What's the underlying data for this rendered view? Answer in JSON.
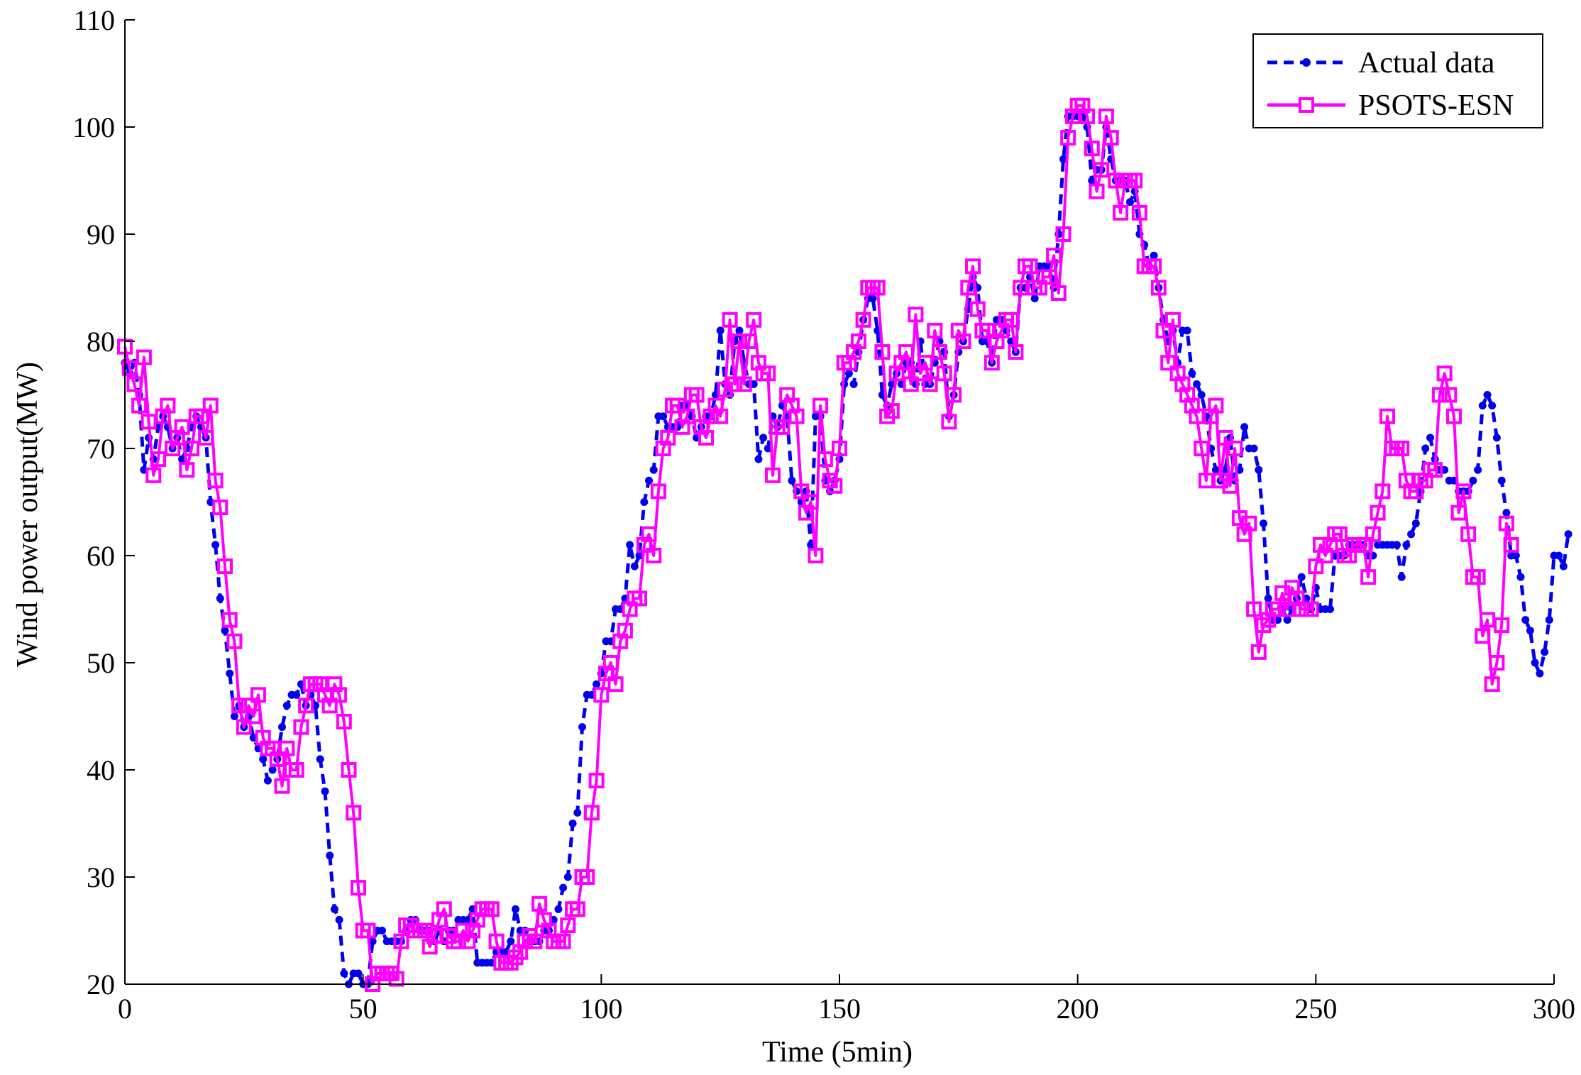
{
  "chart_data": {
    "type": "line",
    "title": "",
    "xlabel": "Time (5min)",
    "ylabel": "Wind power output(MW)",
    "xlim": [
      0,
      300
    ],
    "ylim": [
      20,
      110
    ],
    "xticks": [
      0,
      50,
      100,
      150,
      200,
      250,
      300
    ],
    "yticks": [
      20,
      30,
      40,
      50,
      60,
      70,
      80,
      90,
      100,
      110
    ],
    "grid": false,
    "legend_position": "top-right",
    "series": [
      {
        "name": "Actual data",
        "color": "#0000ee",
        "line_style": "dashed",
        "marker": "dot",
        "x_start": 0,
        "x_step": 1,
        "values": [
          78,
          77,
          78,
          75,
          68,
          71,
          69,
          72,
          73,
          72,
          70,
          71,
          69,
          70,
          72,
          73,
          72,
          71,
          65,
          61,
          56,
          53,
          49,
          45,
          46,
          44,
          45,
          43,
          42,
          41,
          39,
          40,
          41,
          44,
          46,
          47,
          47,
          48,
          46,
          47,
          46,
          41,
          38,
          32,
          27,
          26,
          21,
          20,
          21,
          21,
          20,
          20,
          24,
          25,
          25,
          24,
          24,
          24,
          24,
          25,
          26,
          26,
          25,
          25,
          25,
          24,
          25,
          24,
          25,
          25,
          26,
          26,
          26,
          27,
          22,
          22,
          22,
          22,
          23,
          23,
          23,
          24,
          27,
          25,
          25,
          24,
          24,
          24,
          25,
          25,
          26,
          27,
          29,
          30,
          35,
          36,
          44,
          47,
          47,
          48,
          49,
          52,
          52,
          55,
          55,
          56,
          61,
          59,
          60,
          65,
          67,
          68,
          73,
          73,
          72,
          72,
          72,
          74,
          74,
          73,
          71,
          72,
          73,
          73,
          75,
          81,
          76,
          75,
          80,
          81,
          78,
          76,
          76,
          69,
          71,
          70,
          73,
          72,
          74,
          73,
          67,
          66,
          65,
          66,
          61,
          73,
          73,
          67,
          66,
          67,
          69,
          76,
          77,
          76,
          79,
          82,
          84,
          84,
          81,
          75,
          74,
          76,
          77,
          76,
          78,
          78,
          76,
          80,
          76,
          76,
          78,
          80,
          79,
          73,
          75,
          79,
          80,
          83,
          86,
          85,
          80,
          80,
          78,
          82,
          82,
          81,
          80,
          79,
          85,
          85,
          86,
          84,
          87,
          87,
          87,
          85,
          90,
          97,
          101,
          101,
          101,
          101,
          100,
          95,
          96,
          96,
          100,
          97,
          95,
          95,
          95,
          93,
          94,
          90,
          89,
          87,
          88,
          85,
          82,
          80,
          81,
          78,
          81,
          81,
          77,
          76,
          75,
          73,
          70,
          68,
          67,
          68,
          71,
          67,
          68,
          72,
          70,
          70,
          68,
          63,
          56,
          54,
          54,
          55,
          54,
          55,
          56,
          58,
          56,
          55,
          57,
          55,
          55,
          55,
          60,
          60,
          60,
          61,
          61,
          61,
          61,
          60,
          60,
          61,
          61,
          61,
          61,
          61,
          58,
          61,
          62,
          63,
          66,
          70,
          71,
          69,
          68,
          68,
          67,
          67,
          66,
          66,
          66,
          67,
          68,
          74,
          75,
          74,
          71,
          67,
          64,
          60,
          60,
          58,
          54,
          53,
          50,
          49,
          51,
          54,
          60,
          60,
          59,
          62
        ]
      },
      {
        "name": "PSOTS-ESN",
        "color": "#ff00ff",
        "line_style": "solid",
        "marker": "square",
        "x_start": 0,
        "x_step": 1,
        "values": [
          79.5,
          77.5,
          76,
          74,
          78.5,
          72.5,
          67.5,
          69,
          73,
          74,
          70,
          71,
          72,
          68,
          70,
          73,
          73,
          71,
          74,
          67,
          64.5,
          59,
          54,
          52,
          46,
          44,
          46,
          45,
          47,
          43,
          42,
          42,
          41,
          38.5,
          42,
          40,
          40,
          44,
          46,
          48,
          48,
          48,
          47,
          46,
          48,
          47,
          44.5,
          40,
          36,
          29,
          25,
          25,
          20,
          21,
          21,
          21,
          21,
          20.5,
          24,
          25.5,
          25.5,
          25,
          25,
          25,
          23.5,
          24.5,
          26,
          27,
          24.5,
          24,
          24,
          25,
          24,
          25,
          26,
          27,
          27,
          27,
          24,
          22,
          22,
          22,
          22.5,
          23,
          24,
          24.5,
          24,
          27.5,
          26,
          25,
          24,
          24,
          24,
          25.5,
          27,
          27,
          30,
          30,
          36,
          39,
          47,
          49,
          50,
          48,
          52,
          53,
          55,
          56,
          56,
          61,
          62,
          60,
          66,
          70,
          71,
          74,
          74,
          72,
          73,
          75,
          75,
          72,
          71,
          73,
          74,
          73,
          75.5,
          82,
          76,
          80,
          76,
          80,
          82,
          78,
          77,
          77,
          67.5,
          72,
          72,
          75,
          74,
          73,
          66,
          64,
          65,
          60,
          74,
          69,
          67,
          66.5,
          70,
          78,
          78,
          79,
          80,
          82,
          85,
          85,
          85,
          79,
          73,
          73.5,
          77,
          78,
          79,
          76,
          82.5,
          77,
          78,
          76,
          81,
          79,
          77,
          72.5,
          75,
          81,
          80,
          85,
          87,
          83,
          81,
          81,
          78,
          80,
          81,
          82,
          82,
          79,
          85,
          87,
          87,
          85,
          85,
          86,
          86,
          88,
          84.5,
          90,
          99,
          101,
          102,
          102,
          101,
          98,
          94,
          96,
          101,
          99,
          95,
          92,
          95,
          95,
          95,
          92,
          87,
          87,
          87,
          85,
          81,
          78,
          82,
          77,
          76,
          75,
          74,
          73,
          70,
          67,
          73,
          74,
          67,
          71,
          66.5,
          70,
          63.5,
          62,
          63,
          55,
          51,
          53.5,
          54,
          55,
          55,
          56.5,
          55,
          57,
          56,
          55,
          55,
          55,
          59,
          61,
          60,
          61,
          62,
          62,
          60,
          60,
          61,
          61,
          61,
          58,
          62,
          64,
          66,
          73,
          70,
          70,
          70,
          67,
          66,
          66,
          67,
          67,
          68,
          68,
          75,
          77,
          75,
          73,
          64,
          66,
          62,
          58,
          58,
          52.5,
          54,
          48,
          50,
          53.5,
          63,
          61
        ]
      }
    ]
  }
}
